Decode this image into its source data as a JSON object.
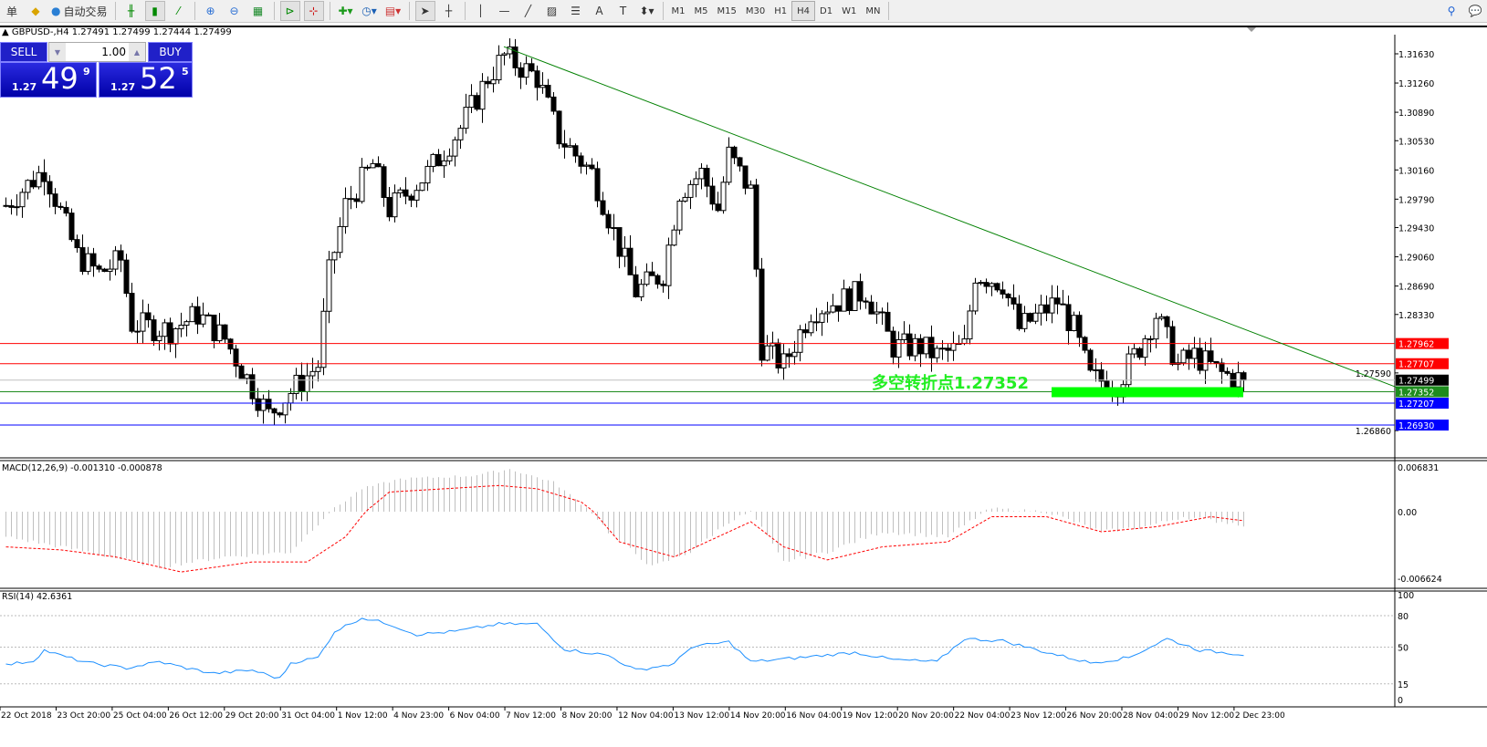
{
  "toolbar": {
    "left_text": "单",
    "autotrade_label": "自动交易",
    "icons": [
      "book-icon",
      "autotrade-icon",
      "bar-chart-icon",
      "candlestick-icon",
      "line-chart-icon",
      "zoom-in-icon",
      "zoom-out-icon",
      "tile-windows-icon",
      "chart-shift-icon",
      "autoscroll-icon",
      "indicators-icon",
      "periods-icon",
      "templates-icon",
      "cursor-icon",
      "crosshair-icon",
      "vertical-line-icon",
      "horizontal-line-icon",
      "trendline-icon",
      "equidistant-channel-icon",
      "fibonacci-icon",
      "text-icon",
      "text-label-icon",
      "arrows-icon"
    ],
    "timeframes": [
      "M1",
      "M5",
      "M15",
      "M30",
      "H1",
      "H4",
      "D1",
      "W1",
      "MN"
    ],
    "active_timeframe": "H4"
  },
  "chart": {
    "title": "GBPUSD-,H4  1.27491 1.27499 1.27444 1.27499",
    "trade_panel": {
      "sell_label": "SELL",
      "buy_label": "BUY",
      "lot": "1.00",
      "sell_prefix": "1.27",
      "sell_big": "49",
      "sell_sup": "9",
      "buy_prefix": "1.27",
      "buy_big": "52",
      "buy_sup": "5"
    },
    "annotation": "多空转折点1.27352",
    "annotation_color": "#00ff00",
    "price_labels": [
      "1.31630",
      "1.31260",
      "1.30890",
      "1.30530",
      "1.30160",
      "1.29790",
      "1.29430",
      "1.29060",
      "1.28690",
      "1.28330",
      "1.27590",
      "1.26860"
    ],
    "levels": [
      {
        "price": "1.27962",
        "color": "#ff0000"
      },
      {
        "price": "1.27707",
        "color": "#ff0000"
      },
      {
        "price": "1.27499",
        "color": "#000000",
        "line": "#c0c0c0"
      },
      {
        "price": "1.27352",
        "color": "#1e8c1e"
      },
      {
        "price": "1.27207",
        "color": "#0000ff"
      },
      {
        "price": "1.26930",
        "color": "#0000ff"
      }
    ],
    "trendline": {
      "from": [
        91,
        1.3172
      ],
      "to": [
        255,
        1.2739
      ],
      "color": "#008000"
    },
    "close_path": [
      [
        0,
        1.2971
      ],
      [
        7,
        1.3017
      ],
      [
        13,
        1.2908
      ],
      [
        17,
        1.2885
      ],
      [
        21,
        1.2902
      ],
      [
        23,
        1.2821
      ],
      [
        30,
        1.2813
      ],
      [
        35,
        1.2833
      ],
      [
        40,
        1.2802
      ],
      [
        45,
        1.274
      ],
      [
        48,
        1.2706
      ],
      [
        52,
        1.2735
      ],
      [
        57,
        1.2769
      ],
      [
        59,
        1.2885
      ],
      [
        62,
        1.2971
      ],
      [
        67,
        1.3023
      ],
      [
        70,
        1.2966
      ],
      [
        77,
        1.3012
      ],
      [
        83,
        1.3069
      ],
      [
        88,
        1.3133
      ],
      [
        91,
        1.316
      ],
      [
        97,
        1.3133
      ],
      [
        101,
        1.3058
      ],
      [
        107,
        1.3012
      ],
      [
        109,
        1.2977
      ],
      [
        111,
        1.2937
      ],
      [
        115,
        1.2862
      ],
      [
        120,
        1.2885
      ],
      [
        123,
        1.2989
      ],
      [
        127,
        1.3012
      ],
      [
        130,
        1.2966
      ],
      [
        132,
        1.3035
      ],
      [
        136,
        1.2989
      ],
      [
        138,
        1.2792
      ],
      [
        142,
        1.2769
      ],
      [
        147,
        1.2838
      ],
      [
        152,
        1.285
      ],
      [
        157,
        1.2862
      ],
      [
        162,
        1.2792
      ],
      [
        167,
        1.2792
      ],
      [
        170,
        1.2781
      ],
      [
        175,
        1.2792
      ],
      [
        177,
        1.2885
      ],
      [
        182,
        1.2873
      ],
      [
        185,
        1.2815
      ],
      [
        192,
        1.285
      ],
      [
        195,
        1.2815
      ],
      [
        198,
        1.2752
      ],
      [
        203,
        1.2746
      ],
      [
        207,
        1.2792
      ],
      [
        210,
        1.2833
      ],
      [
        214,
        1.2769
      ],
      [
        217,
        1.2781
      ],
      [
        222,
        1.2758
      ],
      [
        226,
        1.27499
      ]
    ]
  },
  "macd": {
    "label": "MACD(12,26,9) -0.001310 -0.000878",
    "axis": [
      "0.006831",
      "0.00",
      "-0.006624"
    ],
    "hist_path": [
      [
        0,
        -0.0025
      ],
      [
        15,
        -0.004
      ],
      [
        28,
        -0.0055
      ],
      [
        40,
        -0.0045
      ],
      [
        52,
        -0.004
      ],
      [
        60,
        0.0005
      ],
      [
        65,
        0.0035
      ],
      [
        72,
        0.005
      ],
      [
        85,
        0.0055
      ],
      [
        92,
        0.0065
      ],
      [
        100,
        0.0045
      ],
      [
        110,
        -0.002
      ],
      [
        118,
        -0.0055
      ],
      [
        125,
        -0.004
      ],
      [
        132,
        -0.001
      ],
      [
        136,
        0.0
      ],
      [
        142,
        -0.005
      ],
      [
        150,
        -0.004
      ],
      [
        160,
        -0.002
      ],
      [
        172,
        -0.0025
      ],
      [
        180,
        0.0005
      ],
      [
        190,
        0.0
      ],
      [
        200,
        -0.002
      ],
      [
        208,
        -0.0015
      ],
      [
        215,
        -0.0005
      ],
      [
        226,
        -0.0013
      ]
    ],
    "signal_path": [
      [
        0,
        -0.0035
      ],
      [
        10,
        -0.0038
      ],
      [
        20,
        -0.0045
      ],
      [
        32,
        -0.006
      ],
      [
        45,
        -0.005
      ],
      [
        55,
        -0.005
      ],
      [
        62,
        -0.0025
      ],
      [
        70,
        0.003
      ],
      [
        80,
        0.0035
      ],
      [
        90,
        0.004
      ],
      [
        97,
        0.0035
      ],
      [
        105,
        0.0015
      ],
      [
        112,
        -0.003
      ],
      [
        122,
        -0.0045
      ],
      [
        130,
        -0.0025
      ],
      [
        136,
        -0.001
      ],
      [
        142,
        -0.0035
      ],
      [
        150,
        -0.0048
      ],
      [
        160,
        -0.0035
      ],
      [
        172,
        -0.003
      ],
      [
        180,
        -0.0005
      ],
      [
        190,
        -0.0005
      ],
      [
        200,
        -0.002
      ],
      [
        210,
        -0.0015
      ],
      [
        220,
        -0.0005
      ],
      [
        226,
        -0.0009
      ]
    ],
    "hist_color": "#c0c0c0",
    "signal_color": "#ff0000"
  },
  "rsi": {
    "label": "RSI(14) 42.6361",
    "axis": [
      "100",
      "80",
      "50",
      "15",
      "0"
    ],
    "levels": [
      80,
      50,
      15
    ],
    "color": "#1e90ff",
    "path": [
      [
        0,
        33
      ],
      [
        5,
        37
      ],
      [
        7,
        47
      ],
      [
        10,
        42
      ],
      [
        15,
        35
      ],
      [
        22,
        30
      ],
      [
        28,
        36
      ],
      [
        33,
        30
      ],
      [
        38,
        25
      ],
      [
        45,
        28
      ],
      [
        50,
        20
      ],
      [
        52,
        35
      ],
      [
        57,
        40
      ],
      [
        60,
        65
      ],
      [
        65,
        78
      ],
      [
        70,
        72
      ],
      [
        75,
        62
      ],
      [
        82,
        65
      ],
      [
        90,
        72
      ],
      [
        97,
        72
      ],
      [
        102,
        48
      ],
      [
        110,
        42
      ],
      [
        115,
        28
      ],
      [
        122,
        34
      ],
      [
        125,
        50
      ],
      [
        132,
        55
      ],
      [
        136,
        36
      ],
      [
        145,
        40
      ],
      [
        155,
        45
      ],
      [
        162,
        38
      ],
      [
        170,
        36
      ],
      [
        175,
        58
      ],
      [
        182,
        56
      ],
      [
        190,
        45
      ],
      [
        198,
        35
      ],
      [
        205,
        40
      ],
      [
        212,
        58
      ],
      [
        218,
        47
      ],
      [
        226,
        43
      ]
    ]
  },
  "time_labels": [
    "22 Oct 2018",
    "23 Oct 20:00",
    "25 Oct 04:00",
    "26 Oct 12:00",
    "29 Oct 20:00",
    "31 Oct 04:00",
    "1 Nov 12:00",
    "4 Nov 23:00",
    "6 Nov 04:00",
    "7 Nov 12:00",
    "8 Nov 20:00",
    "12 Nov 04:00",
    "13 Nov 12:00",
    "14 Nov 20:00",
    "16 Nov 04:00",
    "19 Nov 12:00",
    "20 Nov 20:00",
    "22 Nov 04:00",
    "23 Nov 12:00",
    "26 Nov 20:00",
    "28 Nov 04:00",
    "29 Nov 12:00",
    "2 Dec 23:00"
  ]
}
